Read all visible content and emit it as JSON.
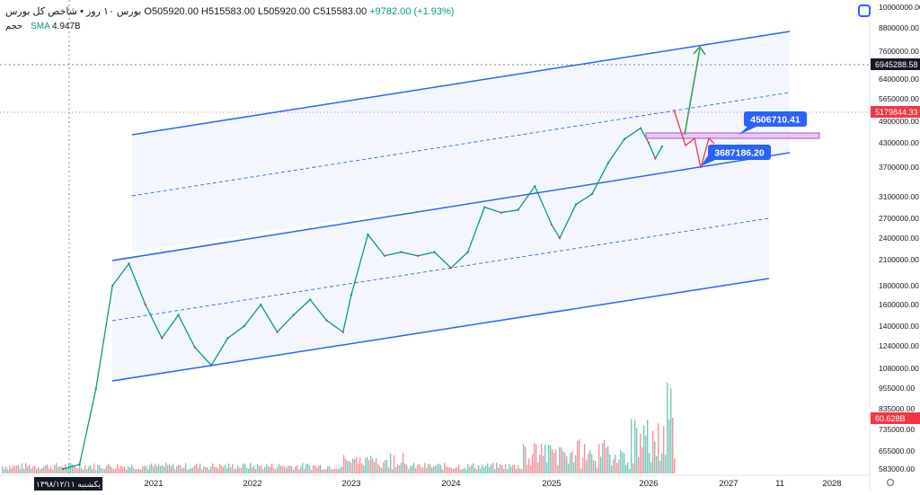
{
  "header": {
    "symbol": "بورس ۱۰ روز • شاخص کل بورس",
    "open_label": "O",
    "open": "505920.00",
    "high_label": "H",
    "high": "515583.00",
    "low_label": "L",
    "low": "505920.00",
    "close_label": "C",
    "close": "515583.00",
    "change": "+9782.00 (+1.93%)",
    "volume_label": "حجم",
    "sma_label": "SMA",
    "sma_value": "4.947B"
  },
  "crosshair_date": "یکشنبه ۱۳۹۸/۱۲/۱۱",
  "colors": {
    "up": "#089981",
    "down": "#f23645",
    "channel": "#2962ff",
    "channel_fill": "#eef2fd",
    "zone": "#b36bd6",
    "arrow_up": "#2e9e3e",
    "arrow_down": "#f23645"
  },
  "chart_data": {
    "type": "line",
    "title": "",
    "xlabel": "",
    "ylabel": "",
    "y_scale": "log",
    "x_ticks": [
      "2021",
      "2022",
      "2023",
      "2024",
      "2025",
      "2026",
      "2027",
      "11",
      "2028"
    ],
    "y_ticks": [
      "10000000.00",
      "8800000.00",
      "7600000.00",
      "6400000.00",
      "5650000.00",
      "4900000.00",
      "4300000.00",
      "3700000.00",
      "3100000.00",
      "2700000.00",
      "2400000.00",
      "2100000.00",
      "1800000.00",
      "1600000.00",
      "1400000.00",
      "1240000.00",
      "1080000.00",
      "955000.00",
      "835000.00",
      "735000.00",
      "655000.00",
      "583000.00"
    ],
    "price_labels": [
      {
        "text": "6945288.58",
        "style": "dark"
      },
      {
        "text": "5179844.33",
        "style": "red"
      },
      {
        "text": "60.628B",
        "style": "red"
      }
    ],
    "annotations": [
      "4506710.41",
      "3687186.20"
    ],
    "series": [
      {
        "name": "",
        "x": [
          "2020-02",
          "2020-04",
          "2020-06",
          "2020-08",
          "2020-10",
          "2020-12",
          "2021-02",
          "2021-04",
          "2021-06",
          "2021-08",
          "2021-10",
          "2021-12",
          "2022-02",
          "2022-04",
          "2022-06",
          "2022-08",
          "2022-10",
          "2022-12",
          "2023-01",
          "2023-03",
          "2023-05",
          "2023-07",
          "2023-09",
          "2023-11",
          "2024-01",
          "2024-03",
          "2024-05",
          "2024-07",
          "2024-09",
          "2024-11",
          "2025-01",
          "2025-02",
          "2025-04",
          "2025-06",
          "2025-08",
          "2025-10",
          "2025-12",
          "2026-01",
          "2026-02",
          "2026-03"
        ],
        "values": [
          540000,
          600000,
          950000,
          1800000,
          2050000,
          1600000,
          1300000,
          1500000,
          1230000,
          1100000,
          1300000,
          1400000,
          1600000,
          1350000,
          1500000,
          1650000,
          1450000,
          1350000,
          1700000,
          2450000,
          2150000,
          2200000,
          2150000,
          2200000,
          2000000,
          2200000,
          2900000,
          2800000,
          2850000,
          3300000,
          2600000,
          2400000,
          2950000,
          3150000,
          3800000,
          4400000,
          4700000,
          4300000,
          3900000,
          4200000
        ]
      }
    ]
  }
}
